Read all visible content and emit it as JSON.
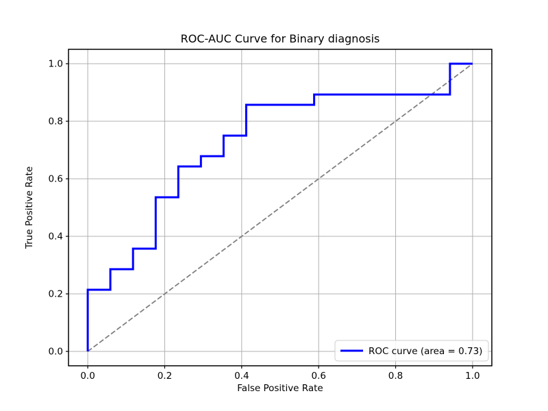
{
  "chart_data": {
    "type": "line",
    "title": "ROC-AUC Curve for Binary diagnosis",
    "xlabel": "False Positive Rate",
    "ylabel": "True Positive Rate",
    "xlim": [
      -0.05,
      1.05
    ],
    "ylim": [
      -0.05,
      1.05
    ],
    "x_ticks": [
      0.0,
      0.2,
      0.4,
      0.6,
      0.8,
      1.0
    ],
    "y_ticks": [
      0.0,
      0.2,
      0.4,
      0.6,
      0.8,
      1.0
    ],
    "grid": true,
    "legend_position": "lower right",
    "auc": 0.73,
    "series": [
      {
        "name": "chance-diagonal",
        "color": "#808080",
        "style": "dashed",
        "line_width": 1.8,
        "x": [
          0.0,
          1.0
        ],
        "y": [
          0.0,
          1.0
        ]
      },
      {
        "name": "ROC curve (area = 0.73)",
        "color": "#0000ff",
        "style": "solid",
        "line_width": 3,
        "x": [
          0.0,
          0.0,
          0.0588,
          0.0588,
          0.1176,
          0.1176,
          0.1765,
          0.1765,
          0.2353,
          0.2353,
          0.2941,
          0.2941,
          0.3529,
          0.3529,
          0.4118,
          0.4118,
          0.5882,
          0.5882,
          0.9412,
          0.9412,
          1.0
        ],
        "y": [
          0.0,
          0.2143,
          0.2143,
          0.2857,
          0.2857,
          0.3571,
          0.3571,
          0.5357,
          0.5357,
          0.6429,
          0.6429,
          0.6786,
          0.6786,
          0.75,
          0.75,
          0.8571,
          0.8571,
          0.8929,
          0.8929,
          1.0,
          1.0
        ]
      }
    ]
  },
  "legend": {
    "label": "ROC curve (area = 0.73)"
  },
  "colors": {
    "background": "#ffffff",
    "roc_curve": "#0000ff",
    "diagonal": "#808080",
    "grid": "#b0b0b0",
    "spine": "#000000",
    "tick": "#000000",
    "legend_border": "#cccccc",
    "legend_background": "#ffffff"
  }
}
